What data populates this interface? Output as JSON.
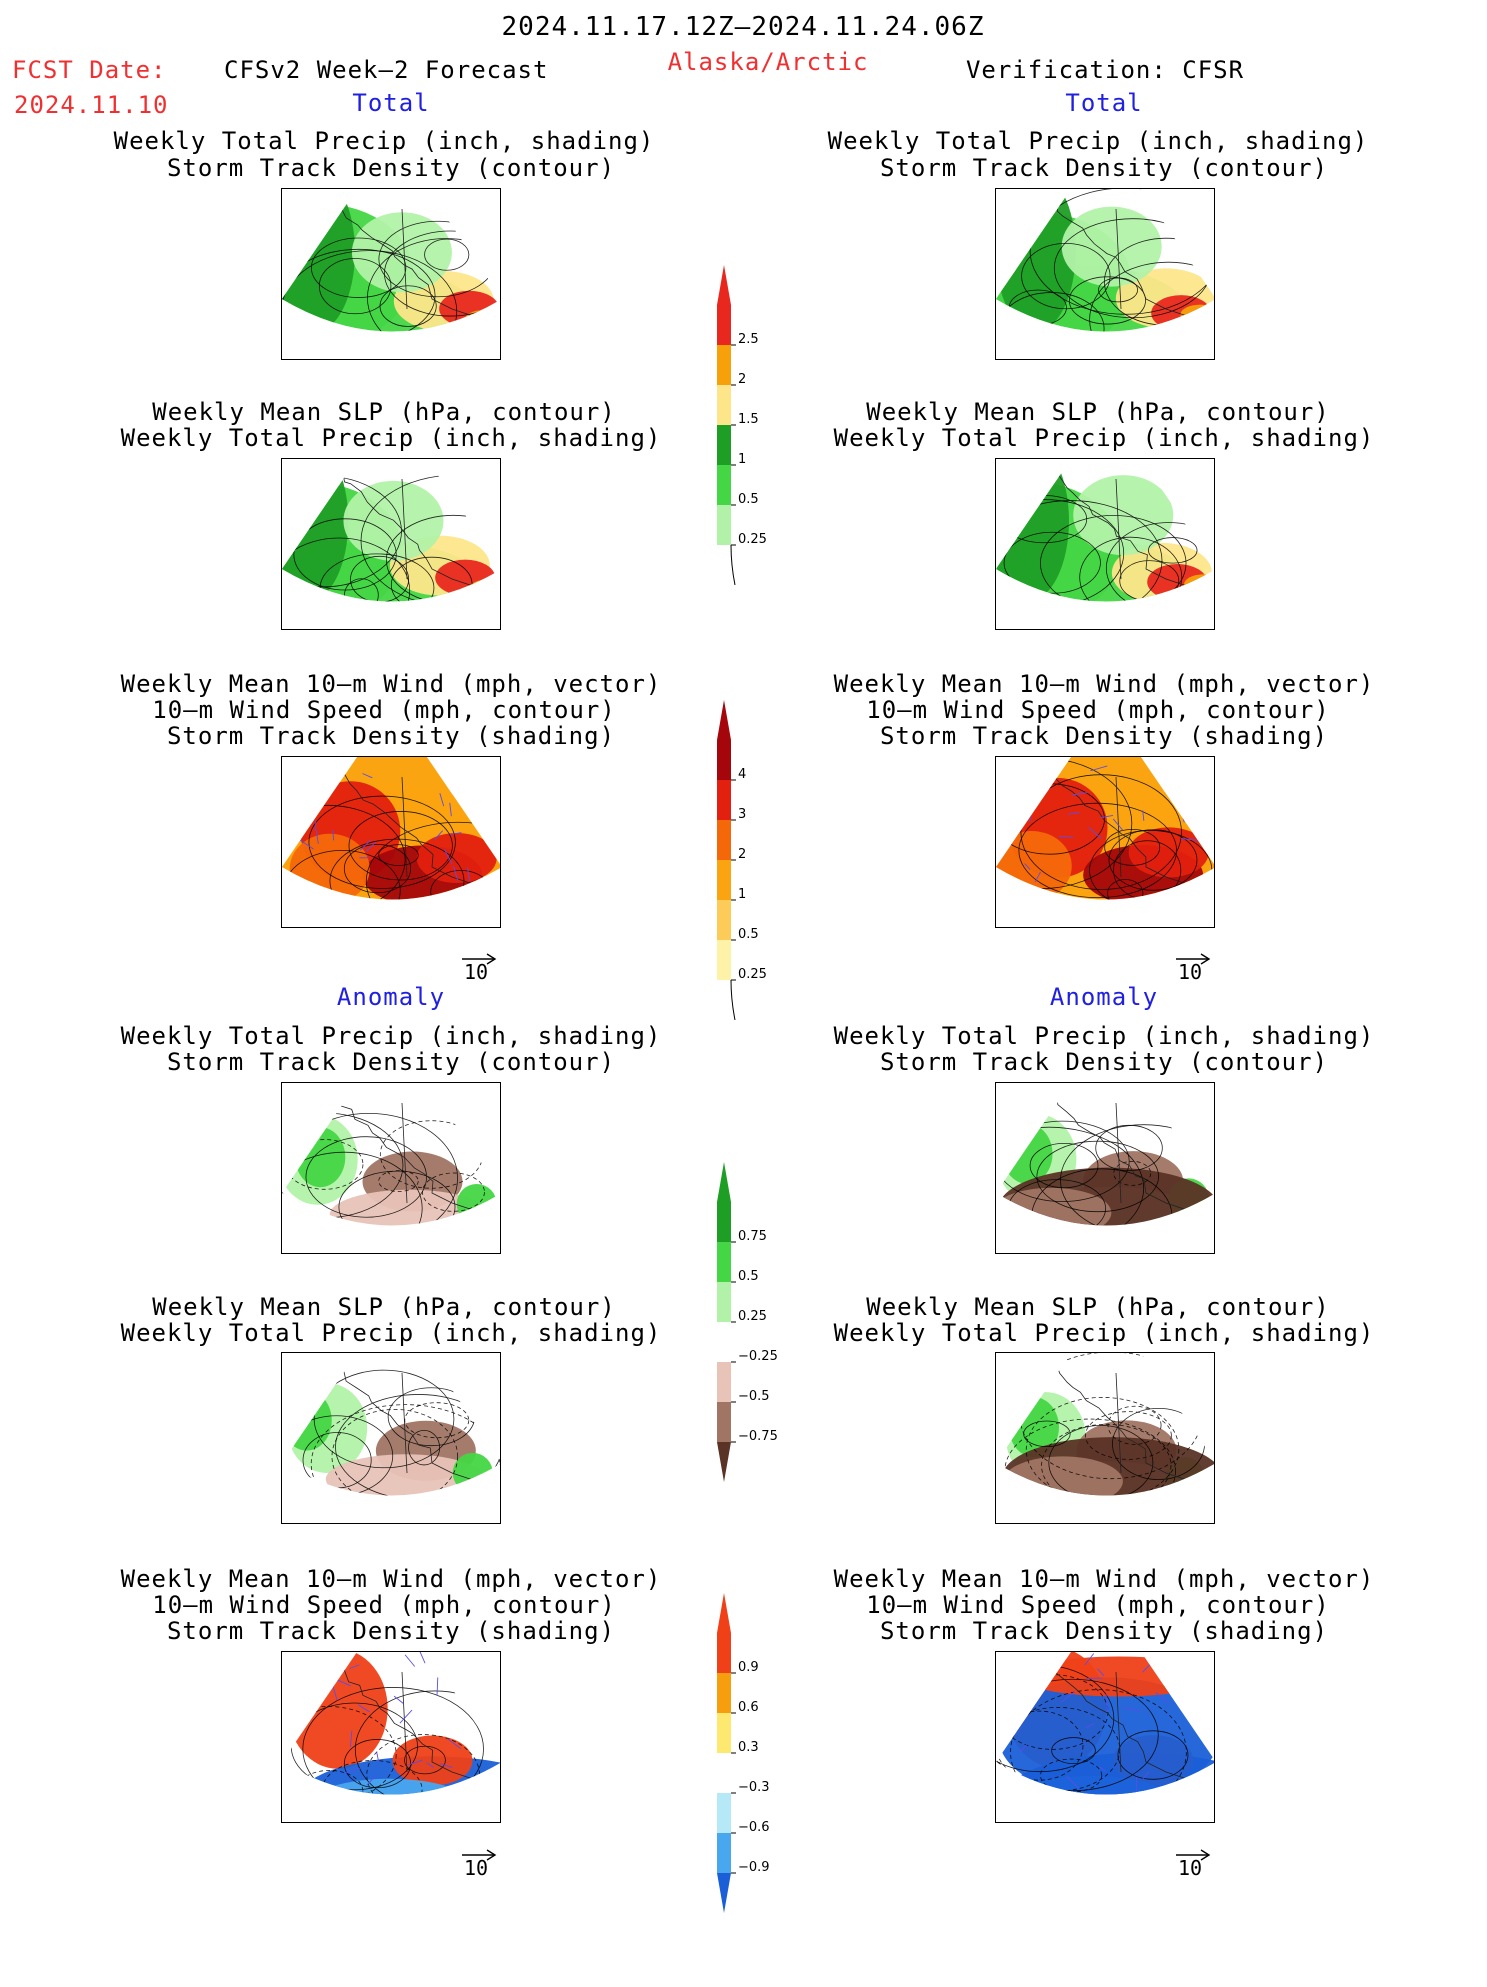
{
  "header": {
    "date_range": "2024.11.17.12Z—2024.11.24.06Z",
    "fcst_label": "FCST Date:",
    "fcst_date": "2024.11.10",
    "forecast_title": "CFSv2 Week—2 Forecast",
    "region": "Alaska/Arctic",
    "verification": "Verification: CFSR"
  },
  "sections": {
    "total_left": "Total",
    "total_right": "Total",
    "anomaly_left": "Anomaly",
    "anomaly_right": "Anomaly"
  },
  "titles": {
    "precip_storm": [
      "Weekly Total Precip (inch, shading)",
      "Storm Track Density (contour)"
    ],
    "slp_precip": [
      "Weekly Mean SLP (hPa, contour)",
      "Weekly Total Precip (inch, shading)"
    ],
    "wind_storm": [
      "Weekly Mean 10—m Wind (mph, vector)",
      "10—m Wind Speed (mph, contour)",
      "Storm Track Density (shading)"
    ]
  },
  "vector_scale": "10",
  "colorbars": {
    "precip_total": {
      "labels": [
        "2.5",
        "2",
        "1.5",
        "1",
        "0.5",
        "0.25"
      ],
      "colors": [
        "#e8281e",
        "#f7a10a",
        "#fde68a",
        "#1f9e26",
        "#44d644",
        "#b2f2a8"
      ]
    },
    "storm_total": {
      "labels": [
        "4",
        "3",
        "2",
        "1",
        "0.5",
        "0.25"
      ],
      "colors": [
        "#a4060b",
        "#e3200f",
        "#f5680a",
        "#fba411",
        "#fdcb58",
        "#fef2a8"
      ]
    },
    "precip_anom": {
      "labels": [
        "0.75",
        "0.5",
        "0.25",
        "−0.25",
        "−0.5",
        "−0.75"
      ],
      "colors": [
        "#1f9e26",
        "#44d644",
        "#b2f2a8",
        "#ffffff",
        "#e8c3b7",
        "#a07564",
        "#5a3326"
      ]
    },
    "storm_anom": {
      "labels": [
        "0.9",
        "0.6",
        "0.3",
        "−0.3",
        "−0.6",
        "−0.9"
      ],
      "colors": [
        "#ef4018",
        "#f79e0f",
        "#fde870",
        "#ffffff",
        "#b5e9f7",
        "#49a7ef",
        "#1a5fd8"
      ]
    }
  }
}
